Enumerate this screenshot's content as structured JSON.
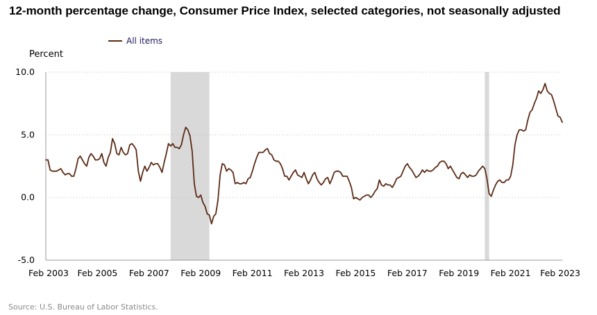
{
  "chart_data": {
    "type": "line",
    "title": "12-month percentage change, Consumer Price Index, selected categories, not seasonally adjusted",
    "ylabel": "Percent",
    "xlabel": "",
    "source": "Source: U.S. Bureau of Labor Statistics.",
    "ylim": [
      -5,
      10
    ],
    "xlim": [
      "2003-02",
      "2023-02"
    ],
    "grid": "horizontal dotted",
    "legend_placement": "top-left",
    "y_ticks": [
      "10.0",
      "5.0",
      "0.0",
      "-5.0"
    ],
    "y_tick_values": [
      10,
      5,
      0,
      -5
    ],
    "x_ticks": [
      "Feb 2003",
      "Feb 2005",
      "Feb 2007",
      "Feb 2009",
      "Feb 2011",
      "Feb 2013",
      "Feb 2015",
      "Feb 2017",
      "Feb 2019",
      "Feb 2021",
      "Feb 2023"
    ],
    "x_tick_dates": [
      "2003-02",
      "2005-02",
      "2007-02",
      "2009-02",
      "2011-02",
      "2013-02",
      "2015-02",
      "2017-02",
      "2019-02",
      "2021-02",
      "2023-02"
    ],
    "recessions": [
      {
        "start": "2007-12",
        "end": "2009-06"
      },
      {
        "start": "2020-02",
        "end": "2020-04"
      }
    ],
    "colors": {
      "series": "#5a2a15",
      "recession": "#d9d9d9",
      "grid": "#bbbbbb",
      "legend_text": "#1a1a5e"
    },
    "series": [
      {
        "name": "All items",
        "x": [
          "2003-02",
          "2003-03",
          "2003-04",
          "2003-05",
          "2003-06",
          "2003-07",
          "2003-08",
          "2003-09",
          "2003-10",
          "2003-11",
          "2003-12",
          "2004-01",
          "2004-02",
          "2004-03",
          "2004-04",
          "2004-05",
          "2004-06",
          "2004-07",
          "2004-08",
          "2004-09",
          "2004-10",
          "2004-11",
          "2004-12",
          "2005-01",
          "2005-02",
          "2005-03",
          "2005-04",
          "2005-05",
          "2005-06",
          "2005-07",
          "2005-08",
          "2005-09",
          "2005-10",
          "2005-11",
          "2005-12",
          "2006-01",
          "2006-02",
          "2006-03",
          "2006-04",
          "2006-05",
          "2006-06",
          "2006-07",
          "2006-08",
          "2006-09",
          "2006-10",
          "2006-11",
          "2006-12",
          "2007-01",
          "2007-02",
          "2007-03",
          "2007-04",
          "2007-05",
          "2007-06",
          "2007-07",
          "2007-08",
          "2007-09",
          "2007-10",
          "2007-11",
          "2007-12",
          "2008-01",
          "2008-02",
          "2008-03",
          "2008-04",
          "2008-05",
          "2008-06",
          "2008-07",
          "2008-08",
          "2008-09",
          "2008-10",
          "2008-11",
          "2008-12",
          "2009-01",
          "2009-02",
          "2009-03",
          "2009-04",
          "2009-05",
          "2009-06",
          "2009-07",
          "2009-08",
          "2009-09",
          "2009-10",
          "2009-11",
          "2009-12",
          "2010-01",
          "2010-02",
          "2010-03",
          "2010-04",
          "2010-05",
          "2010-06",
          "2010-07",
          "2010-08",
          "2010-09",
          "2010-10",
          "2010-11",
          "2010-12",
          "2011-01",
          "2011-02",
          "2011-03",
          "2011-04",
          "2011-05",
          "2011-06",
          "2011-07",
          "2011-08",
          "2011-09",
          "2011-10",
          "2011-11",
          "2011-12",
          "2012-01",
          "2012-02",
          "2012-03",
          "2012-04",
          "2012-05",
          "2012-06",
          "2012-07",
          "2012-08",
          "2012-09",
          "2012-10",
          "2012-11",
          "2012-12",
          "2013-01",
          "2013-02",
          "2013-03",
          "2013-04",
          "2013-05",
          "2013-06",
          "2013-07",
          "2013-08",
          "2013-09",
          "2013-10",
          "2013-11",
          "2013-12",
          "2014-01",
          "2014-02",
          "2014-03",
          "2014-04",
          "2014-05",
          "2014-06",
          "2014-07",
          "2014-08",
          "2014-09",
          "2014-10",
          "2014-11",
          "2014-12",
          "2015-01",
          "2015-02",
          "2015-03",
          "2015-04",
          "2015-05",
          "2015-06",
          "2015-07",
          "2015-08",
          "2015-09",
          "2015-10",
          "2015-11",
          "2015-12",
          "2016-01",
          "2016-02",
          "2016-03",
          "2016-04",
          "2016-05",
          "2016-06",
          "2016-07",
          "2016-08",
          "2016-09",
          "2016-10",
          "2016-11",
          "2016-12",
          "2017-01",
          "2017-02",
          "2017-03",
          "2017-04",
          "2017-05",
          "2017-06",
          "2017-07",
          "2017-08",
          "2017-09",
          "2017-10",
          "2017-11",
          "2017-12",
          "2018-01",
          "2018-02",
          "2018-03",
          "2018-04",
          "2018-05",
          "2018-06",
          "2018-07",
          "2018-08",
          "2018-09",
          "2018-10",
          "2018-11",
          "2018-12",
          "2019-01",
          "2019-02",
          "2019-03",
          "2019-04",
          "2019-05",
          "2019-06",
          "2019-07",
          "2019-08",
          "2019-09",
          "2019-10",
          "2019-11",
          "2019-12",
          "2020-01",
          "2020-02",
          "2020-03",
          "2020-04",
          "2020-05",
          "2020-06",
          "2020-07",
          "2020-08",
          "2020-09",
          "2020-10",
          "2020-11",
          "2020-12",
          "2021-01",
          "2021-02",
          "2021-03",
          "2021-04",
          "2021-05",
          "2021-06",
          "2021-07",
          "2021-08",
          "2021-09",
          "2021-10",
          "2021-11",
          "2021-12",
          "2022-01",
          "2022-02",
          "2022-03",
          "2022-04",
          "2022-05",
          "2022-06",
          "2022-07",
          "2022-08",
          "2022-09",
          "2022-10",
          "2022-11",
          "2022-12",
          "2023-01",
          "2023-02"
        ],
        "values": [
          3.0,
          3.0,
          2.2,
          2.1,
          2.1,
          2.1,
          2.2,
          2.3,
          2.0,
          1.8,
          1.9,
          1.9,
          1.7,
          1.7,
          2.3,
          3.1,
          3.3,
          3.0,
          2.7,
          2.5,
          3.2,
          3.5,
          3.3,
          3.0,
          3.0,
          3.1,
          3.5,
          2.8,
          2.5,
          3.2,
          3.6,
          4.7,
          4.3,
          3.5,
          3.4,
          4.0,
          3.6,
          3.4,
          3.5,
          4.2,
          4.3,
          4.1,
          3.8,
          2.1,
          1.3,
          2.0,
          2.5,
          2.1,
          2.4,
          2.8,
          2.6,
          2.7,
          2.7,
          2.4,
          2.0,
          2.8,
          3.5,
          4.3,
          4.1,
          4.3,
          4.0,
          4.0,
          3.9,
          4.2,
          5.0,
          5.6,
          5.4,
          4.9,
          3.7,
          1.1,
          0.1,
          0.0,
          0.2,
          -0.4,
          -0.7,
          -1.3,
          -1.4,
          -2.1,
          -1.5,
          -1.3,
          -0.2,
          1.8,
          2.7,
          2.6,
          2.1,
          2.3,
          2.2,
          2.0,
          1.1,
          1.2,
          1.1,
          1.1,
          1.2,
          1.1,
          1.5,
          1.6,
          2.1,
          2.7,
          3.2,
          3.6,
          3.6,
          3.6,
          3.8,
          3.9,
          3.5,
          3.4,
          3.0,
          2.9,
          2.9,
          2.7,
          2.3,
          1.7,
          1.7,
          1.4,
          1.7,
          2.0,
          2.2,
          1.8,
          1.7,
          1.6,
          2.0,
          1.5,
          1.1,
          1.4,
          1.8,
          2.0,
          1.5,
          1.2,
          1.0,
          1.2,
          1.5,
          1.6,
          1.1,
          1.5,
          2.0,
          2.1,
          2.1,
          2.0,
          1.7,
          1.7,
          1.7,
          1.3,
          0.8,
          -0.1,
          0.0,
          -0.1,
          -0.2,
          0.0,
          0.1,
          0.2,
          0.2,
          0.0,
          0.2,
          0.5,
          0.7,
          1.4,
          1.0,
          0.9,
          1.1,
          1.0,
          1.0,
          0.8,
          1.1,
          1.5,
          1.6,
          1.7,
          2.1,
          2.5,
          2.7,
          2.4,
          2.2,
          1.9,
          1.6,
          1.7,
          1.9,
          2.2,
          2.0,
          2.2,
          2.1,
          2.1,
          2.2,
          2.4,
          2.5,
          2.8,
          2.9,
          2.9,
          2.7,
          2.3,
          2.5,
          2.2,
          1.9,
          1.6,
          1.5,
          1.9,
          2.0,
          1.8,
          1.6,
          1.8,
          1.7,
          1.7,
          1.8,
          2.1,
          2.3,
          2.5,
          2.3,
          1.5,
          0.3,
          0.1,
          0.6,
          1.0,
          1.3,
          1.4,
          1.2,
          1.2,
          1.4,
          1.4,
          1.7,
          2.6,
          4.2,
          5.0,
          5.4,
          5.4,
          5.3,
          5.4,
          6.2,
          6.8,
          7.0,
          7.5,
          7.9,
          8.5,
          8.3,
          8.6,
          9.1,
          8.5,
          8.3,
          8.2,
          7.7,
          7.1,
          6.5,
          6.4,
          6.0
        ]
      }
    ]
  }
}
